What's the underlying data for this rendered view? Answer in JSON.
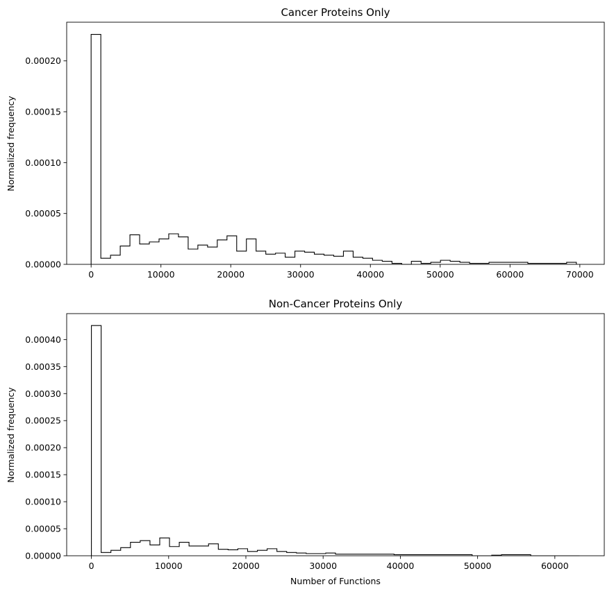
{
  "chart_data": [
    {
      "type": "histogram",
      "title": "Cancer Proteins Only",
      "xlabel": "",
      "ylabel": "Normalized frequency",
      "xlim": [
        -3500,
        73500
      ],
      "ylim": [
        0,
        0.000238
      ],
      "xticks": [
        0,
        10000,
        20000,
        30000,
        40000,
        50000,
        60000,
        70000
      ],
      "xtick_labels": [
        "0",
        "10000",
        "20000",
        "30000",
        "40000",
        "50000",
        "60000",
        "70000"
      ],
      "yticks": [
        0,
        5e-05,
        0.0001,
        0.00015,
        0.0002
      ],
      "ytick_labels": [
        "0.00000",
        "0.00005",
        "0.00010",
        "0.00015",
        "0.00020"
      ],
      "histtype": "step",
      "color": "#000000",
      "bin_edges": [
        0,
        1390,
        2780,
        4170,
        5560,
        6950,
        8340,
        9730,
        11120,
        12510,
        13900,
        15290,
        16680,
        18070,
        19460,
        20850,
        22240,
        23630,
        25020,
        26410,
        27800,
        29190,
        30580,
        31970,
        33360,
        34750,
        36140,
        37530,
        38920,
        40310,
        41700,
        43090,
        44480,
        45870,
        47260,
        48650,
        50040,
        51430,
        52820,
        54210,
        55600,
        56990,
        58380,
        59770,
        61160,
        62550,
        63940,
        65330,
        66720,
        68110,
        69500
      ],
      "values": [
        0.000226,
        6e-06,
        9e-06,
        1.8e-05,
        2.9e-05,
        2e-05,
        2.2e-05,
        2.5e-05,
        3e-05,
        2.7e-05,
        1.5e-05,
        1.9e-05,
        1.7e-05,
        2.4e-05,
        2.8e-05,
        1.3e-05,
        2.5e-05,
        1.3e-05,
        1e-05,
        1.1e-05,
        7e-06,
        1.3e-05,
        1.2e-05,
        1e-05,
        9e-06,
        8e-06,
        1.3e-05,
        7e-06,
        6e-06,
        4e-06,
        3e-06,
        1e-06,
        0.0,
        3e-06,
        1e-06,
        2e-06,
        4e-06,
        3e-06,
        2e-06,
        1e-06,
        1e-06,
        2e-06,
        2e-06,
        2e-06,
        2e-06,
        1e-06,
        1e-06,
        1e-06,
        1e-06,
        2e-06
      ]
    },
    {
      "type": "histogram",
      "title": "Non-Cancer Proteins Only",
      "xlabel": "Number of Functions",
      "ylabel": "Normalized frequency",
      "xlim": [
        -3200,
        66400
      ],
      "ylim": [
        0,
        0.000448
      ],
      "xticks": [
        0,
        10000,
        20000,
        30000,
        40000,
        50000,
        60000
      ],
      "xtick_labels": [
        "0",
        "10000",
        "20000",
        "30000",
        "40000",
        "50000",
        "60000"
      ],
      "yticks": [
        0,
        5e-05,
        0.0001,
        0.00015,
        0.0002,
        0.00025,
        0.0003,
        0.00035,
        0.0004
      ],
      "ytick_labels": [
        "0.00000",
        "0.00005",
        "0.00010",
        "0.00015",
        "0.00020",
        "0.00025",
        "0.00030",
        "0.00035",
        "0.00040"
      ],
      "histtype": "step",
      "color": "#000000",
      "bin_edges": [
        0,
        1264,
        2528,
        3792,
        5056,
        6320,
        7584,
        8848,
        10112,
        11376,
        12640,
        13904,
        15168,
        16432,
        17696,
        18960,
        20224,
        21488,
        22752,
        24016,
        25280,
        26544,
        27808,
        29072,
        30336,
        31600,
        32864,
        34128,
        35392,
        36656,
        37920,
        39184,
        40448,
        41712,
        42976,
        44240,
        45504,
        46768,
        48032,
        49296,
        50560,
        51824,
        53088,
        54352,
        55616,
        56880,
        58144,
        59408,
        60672,
        61936,
        63200
      ],
      "values": [
        0.000426,
        6e-06,
        1e-05,
        1.5e-05,
        2.5e-05,
        2.8e-05,
        2e-05,
        3.3e-05,
        1.7e-05,
        2.5e-05,
        1.8e-05,
        1.8e-05,
        2.2e-05,
        1.2e-05,
        1.1e-05,
        1.3e-05,
        8e-06,
        1e-05,
        1.3e-05,
        8e-06,
        6e-06,
        5e-06,
        4e-06,
        4e-06,
        5e-06,
        3e-06,
        3e-06,
        3e-06,
        3e-06,
        3e-06,
        3e-06,
        2e-06,
        2e-06,
        2e-06,
        2e-06,
        2e-06,
        2e-06,
        2e-06,
        2e-06,
        0.0,
        0.0,
        1e-06,
        2e-06,
        2e-06,
        2e-06,
        0.0,
        0.0,
        0.0,
        0.0,
        0.0
      ]
    }
  ]
}
